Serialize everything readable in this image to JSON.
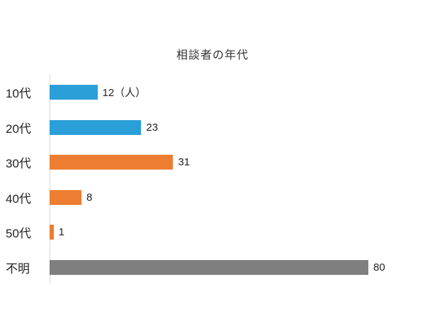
{
  "chart_data": {
    "type": "bar",
    "orientation": "horizontal",
    "title": "相談者の年代",
    "categories": [
      "10代",
      "20代",
      "30代",
      "40代",
      "50代",
      "不明"
    ],
    "values": [
      12,
      23,
      31,
      8,
      1,
      80
    ],
    "value_labels": [
      "12（人）",
      "23",
      "31",
      "8",
      "1",
      "80"
    ],
    "unit": "人",
    "xlim": [
      0,
      80
    ],
    "grid": false,
    "legend": false,
    "bar_colors": [
      "#2B9FD8",
      "#2B9FD8",
      "#ED7D31",
      "#ED7D31",
      "#ED7D31",
      "#7F7F7F"
    ],
    "colors": {
      "blue": "#2B9FD8",
      "orange": "#ED7D31",
      "gray": "#7F7F7F",
      "axis": "#d9d9d9",
      "text": "#222222"
    }
  }
}
